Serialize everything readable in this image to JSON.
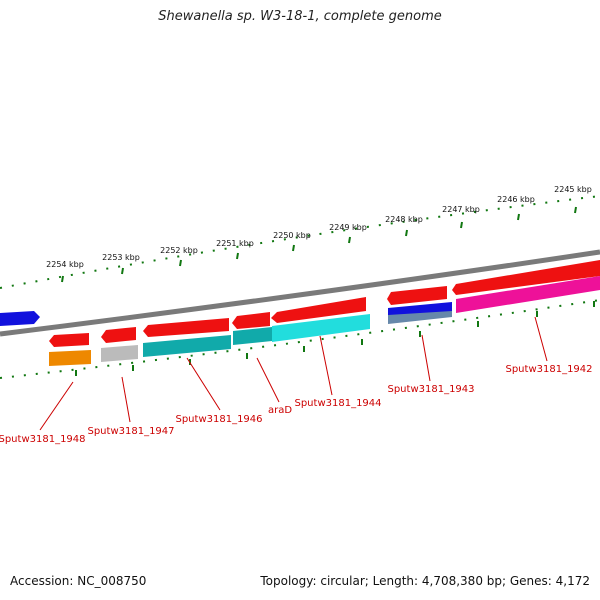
{
  "title": "Shewanella sp. W3-18-1, complete genome",
  "footer": {
    "accession": "Accession: NC_008750",
    "summary": "Topology: circular; Length: 4,708,380 bp; Genes: 4,172"
  },
  "scale_labels": [
    "2245 kbp",
    "2246 kbp",
    "2247 kbp",
    "2248 kbp",
    "2249 kbp",
    "2250 kbp",
    "2251 kbp",
    "2252 kbp",
    "2253 kbp",
    "2254 kbp"
  ],
  "gene_labels": [
    "Sputw3181_1942",
    "Sputw3181_1943",
    "Sputw3181_1944",
    "araD",
    "Sputw3181_1946",
    "Sputw3181_1947",
    "Sputw3181_1948"
  ],
  "colors": {
    "gene_red": "#ee1111",
    "backbone": "#7a7a7a",
    "tick_green": "#117711",
    "label_red": "#cc0000",
    "cog_blue": "#1111dd",
    "cog_cyan": "#22dddd",
    "cog_teal": "#11aaaa",
    "cog_magenta": "#ee1199",
    "cog_orange": "#ee8800",
    "cog_gray": "#bbbbbb",
    "cog_slate": "#6688aa"
  }
}
